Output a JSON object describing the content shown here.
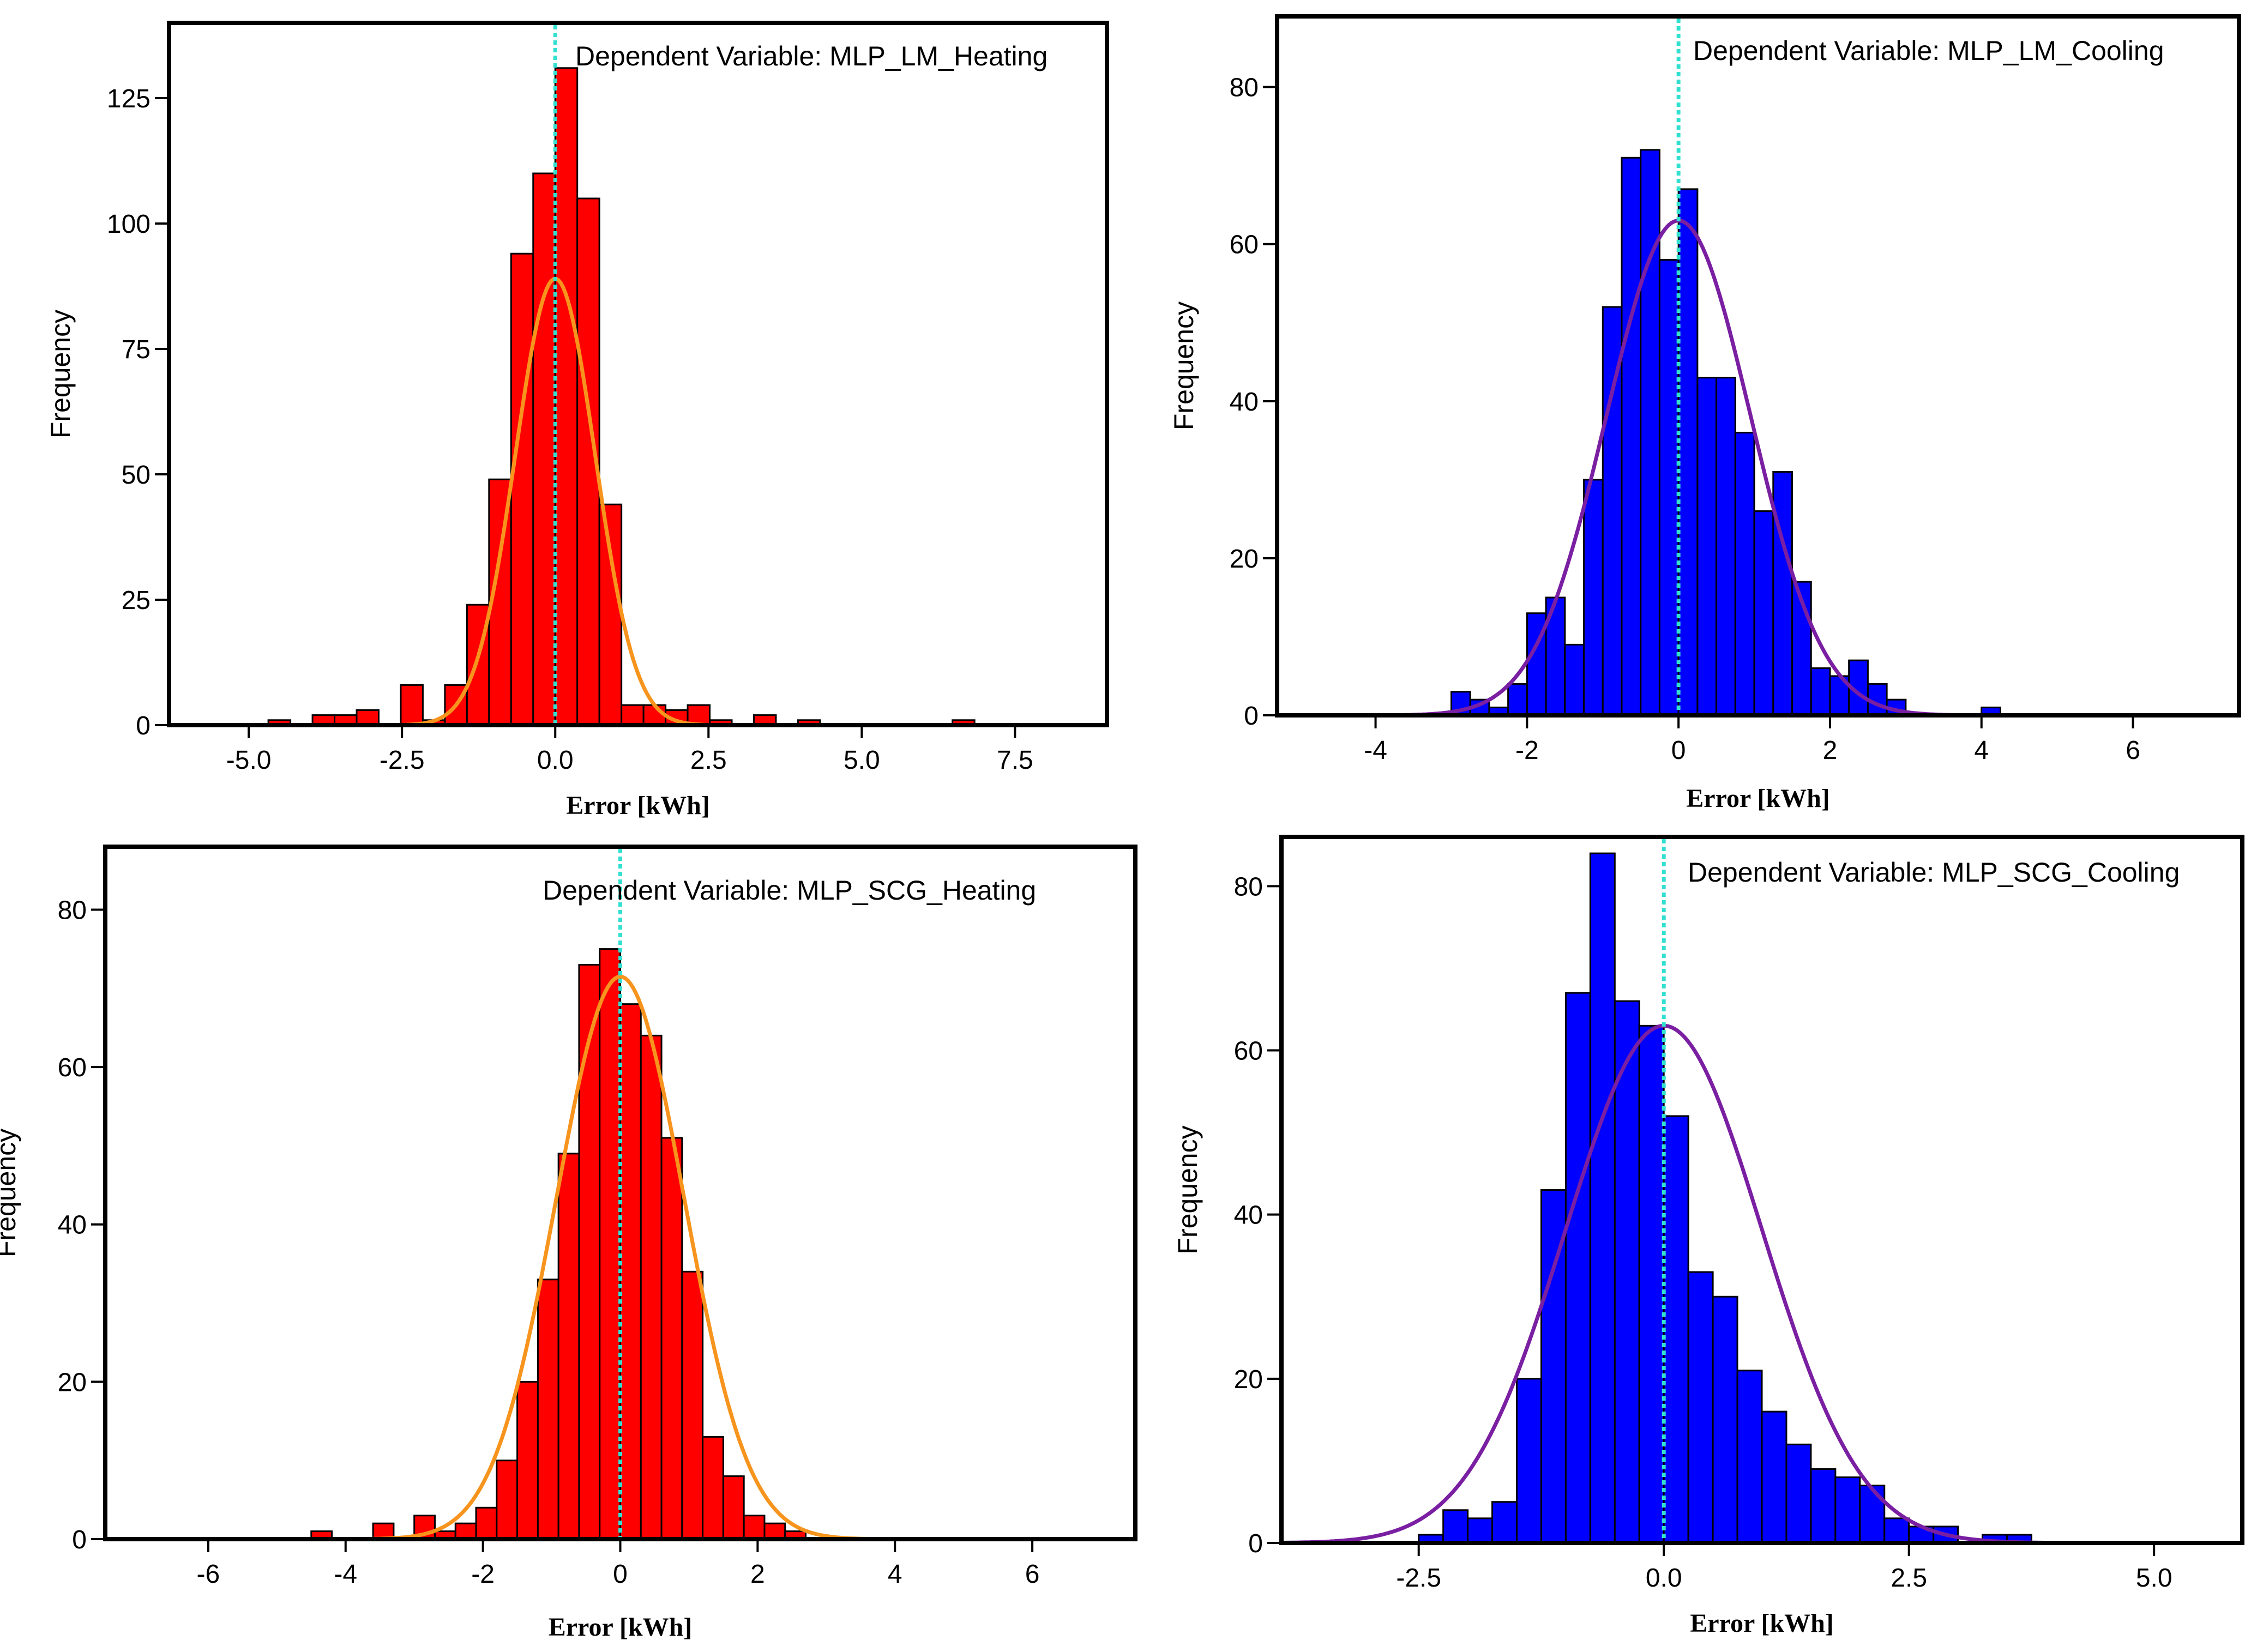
{
  "chart_data": [
    {
      "type": "bar",
      "annotation": "Dependent Variable: MLP_LM_Heating",
      "xlabel": "Error [kWh]",
      "ylabel": "Frequency",
      "xlim": [
        -6.3,
        9.0
      ],
      "ylim": [
        0,
        140
      ],
      "xticks": [
        -5.0,
        -2.5,
        0.0,
        2.5,
        5.0,
        7.5
      ],
      "xtick_labels": [
        "-5.0",
        "-2.5",
        "0.0",
        "2.5",
        "5.0",
        "7.5"
      ],
      "yticks": [
        0,
        25,
        50,
        75,
        100,
        125
      ],
      "ytick_labels": [
        "0",
        "25",
        "50",
        "75",
        "100",
        "125"
      ],
      "bin_width": 0.36,
      "bin_start": -4.68,
      "counts": [
        1,
        0,
        2,
        2,
        3,
        0,
        8,
        1,
        8,
        24,
        49,
        94,
        110,
        131,
        105,
        44,
        4,
        4,
        3,
        4,
        1,
        0,
        2,
        0,
        1,
        0,
        0,
        0,
        0,
        0,
        0,
        1
      ],
      "normal_curve": {
        "mean": 0.0,
        "sd": 0.65,
        "peak": 89
      },
      "reference_line_x": 0.0,
      "colors": {
        "bar": "#ff0000",
        "curve": "#f7941d",
        "reference": "#33e0d0"
      }
    },
    {
      "type": "bar",
      "annotation": "Dependent Variable: MLP_LM_Cooling",
      "xlabel": "Error [kWh]",
      "ylabel": "Frequency",
      "xlim": [
        -5.3,
        7.4
      ],
      "ylim": [
        0,
        89
      ],
      "xticks": [
        -4,
        -2,
        0,
        2,
        4,
        6
      ],
      "xtick_labels": [
        "-4",
        "-2",
        "0",
        "2",
        "4",
        "6"
      ],
      "yticks": [
        0,
        20,
        40,
        60,
        80
      ],
      "ytick_labels": [
        "0",
        "20",
        "40",
        "60",
        "80"
      ],
      "bin_width": 0.25,
      "bin_start": -3.0,
      "counts": [
        3,
        2,
        1,
        4,
        13,
        15,
        9,
        30,
        52,
        71,
        72,
        58,
        67,
        43,
        43,
        36,
        26,
        31,
        17,
        6,
        5,
        7,
        4,
        2,
        0,
        0,
        0,
        0,
        1
      ],
      "normal_curve": {
        "mean": 0.0,
        "sd": 0.95,
        "peak": 63
      },
      "reference_line_x": 0.0,
      "colors": {
        "bar": "#0000ff",
        "curve": "#7a1fa2",
        "reference": "#33e0d0"
      }
    },
    {
      "type": "bar",
      "annotation": "Dependent Variable: MLP_SCG_Heating",
      "xlabel": "Error [kWh]",
      "ylabel": "Frequency",
      "xlim": [
        -7.5,
        7.5
      ],
      "ylim": [
        0,
        88
      ],
      "xticks": [
        -6,
        -4,
        -2,
        0,
        2,
        4,
        6
      ],
      "xtick_labels": [
        "-6",
        "-4",
        "-2",
        "0",
        "2",
        "4",
        "6"
      ],
      "yticks": [
        0,
        20,
        40,
        60,
        80
      ],
      "ytick_labels": [
        "0",
        "20",
        "40",
        "60",
        "80"
      ],
      "bin_width": 0.3,
      "bin_start": -4.5,
      "counts": [
        1,
        0,
        0,
        2,
        0,
        3,
        1,
        2,
        4,
        10,
        20,
        33,
        49,
        73,
        75,
        68,
        64,
        51,
        34,
        13,
        8,
        3,
        2,
        1
      ],
      "normal_curve": {
        "mean": 0.0,
        "sd": 0.93,
        "peak": 71.5
      },
      "reference_line_x": 0.0,
      "colors": {
        "bar": "#ff0000",
        "curve": "#f7941d",
        "reference": "#33e0d0"
      }
    },
    {
      "type": "bar",
      "annotation": "Dependent Variable: MLP_SCG_Cooling",
      "xlabel": "Error [kWh]",
      "ylabel": "Frequency",
      "xlim": [
        -3.9,
        5.9
      ],
      "ylim": [
        0,
        86
      ],
      "xticks": [
        -2.5,
        0.0,
        2.5,
        5.0
      ],
      "xtick_labels": [
        "-2.5",
        "0.0",
        "2.5",
        "5.0"
      ],
      "yticks": [
        0,
        20,
        40,
        60,
        80
      ],
      "ytick_labels": [
        "0",
        "20",
        "40",
        "60",
        "80"
      ],
      "bin_width": 0.25,
      "bin_start": -2.5,
      "counts": [
        1,
        4,
        3,
        5,
        20,
        43,
        67,
        84,
        66,
        63,
        52,
        33,
        30,
        21,
        16,
        12,
        9,
        8,
        7,
        3,
        2,
        2,
        0,
        1,
        1
      ],
      "normal_curve": {
        "mean": 0.0,
        "sd": 1.0,
        "peak": 63
      },
      "reference_line_x": 0.0,
      "colors": {
        "bar": "#0000ff",
        "curve": "#7a1fa2",
        "reference": "#33e0d0"
      }
    }
  ]
}
